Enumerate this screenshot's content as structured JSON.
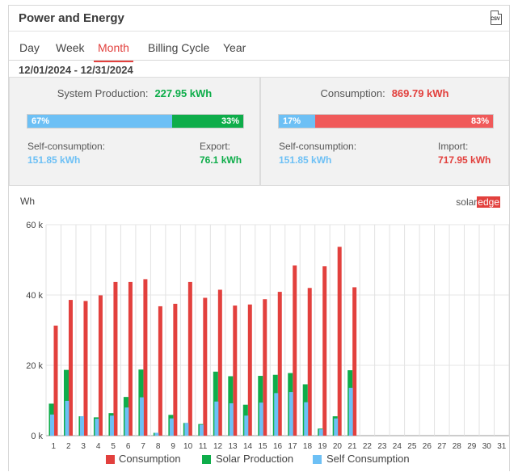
{
  "header": {
    "title": "Power and Energy",
    "csv_label": "CSV"
  },
  "tabs": [
    {
      "label": "Day"
    },
    {
      "label": "Week"
    },
    {
      "label": "Month",
      "active": true
    },
    {
      "label": "Billing Cycle"
    },
    {
      "label": "Year"
    }
  ],
  "date_range": "12/01/2024 - 12/31/2024",
  "production": {
    "label": "System Production:",
    "value": "227.95 kWh",
    "self_pct": 67,
    "self_pct_label": "67%",
    "export_pct": 33,
    "export_pct_label": "33%",
    "self_label": "Self-consumption:",
    "self_value": "151.85 kWh",
    "export_label": "Export:",
    "export_value": "76.1 kWh"
  },
  "consumption": {
    "label": "Consumption:",
    "value": "869.79 kWh",
    "self_pct": 17,
    "self_pct_label": "17%",
    "import_pct": 83,
    "import_pct_label": "83%",
    "self_label": "Self-consumption:",
    "self_value": "151.85 kWh",
    "import_label": "Import:",
    "import_value": "717.95 kWh"
  },
  "colors": {
    "consumption": "#e2403d",
    "production": "#0ead4a",
    "self": "#6dc0f5",
    "accent": "#e2403d"
  },
  "logo": {
    "part1": "solar",
    "part2": "edge"
  },
  "chart_data": {
    "type": "bar",
    "ylabel": "Wh",
    "ylim": [
      0,
      60000
    ],
    "yticks": [
      "0 k",
      "20 k",
      "40 k",
      "60 k"
    ],
    "categories": [
      "1",
      "2",
      "3",
      "4",
      "5",
      "6",
      "7",
      "8",
      "9",
      "10",
      "11",
      "12",
      "13",
      "14",
      "15",
      "16",
      "17",
      "18",
      "19",
      "20",
      "21",
      "22",
      "23",
      "24",
      "25",
      "26",
      "27",
      "28",
      "29",
      "30",
      "31"
    ],
    "series": [
      {
        "name": "Consumption",
        "values": [
          31300,
          38600,
          38300,
          39900,
          43700,
          43700,
          44500,
          36800,
          37500,
          43700,
          39200,
          41500,
          37000,
          37300,
          38800,
          40900,
          48400,
          42000,
          48200,
          53700,
          42200,
          null,
          null,
          null,
          null,
          null,
          null,
          null,
          null,
          null,
          null
        ]
      },
      {
        "name": "Solar Production",
        "values": [
          9100,
          18700,
          5500,
          5200,
          6400,
          11000,
          18800,
          800,
          5900,
          3600,
          3300,
          18200,
          16900,
          8800,
          17000,
          17300,
          17800,
          14600,
          2000,
          5500,
          18600,
          null,
          null,
          null,
          null,
          null,
          null,
          null,
          null,
          null,
          null
        ]
      },
      {
        "name": "Self Consumption",
        "values": [
          6000,
          9900,
          5500,
          4800,
          5700,
          8000,
          10900,
          800,
          4900,
          3600,
          3100,
          9700,
          9200,
          5700,
          9400,
          12100,
          12400,
          9500,
          1800,
          4900,
          13600,
          null,
          null,
          null,
          null,
          null,
          null,
          null,
          null,
          null,
          null
        ]
      }
    ],
    "grid": true,
    "legend": "bottom"
  }
}
